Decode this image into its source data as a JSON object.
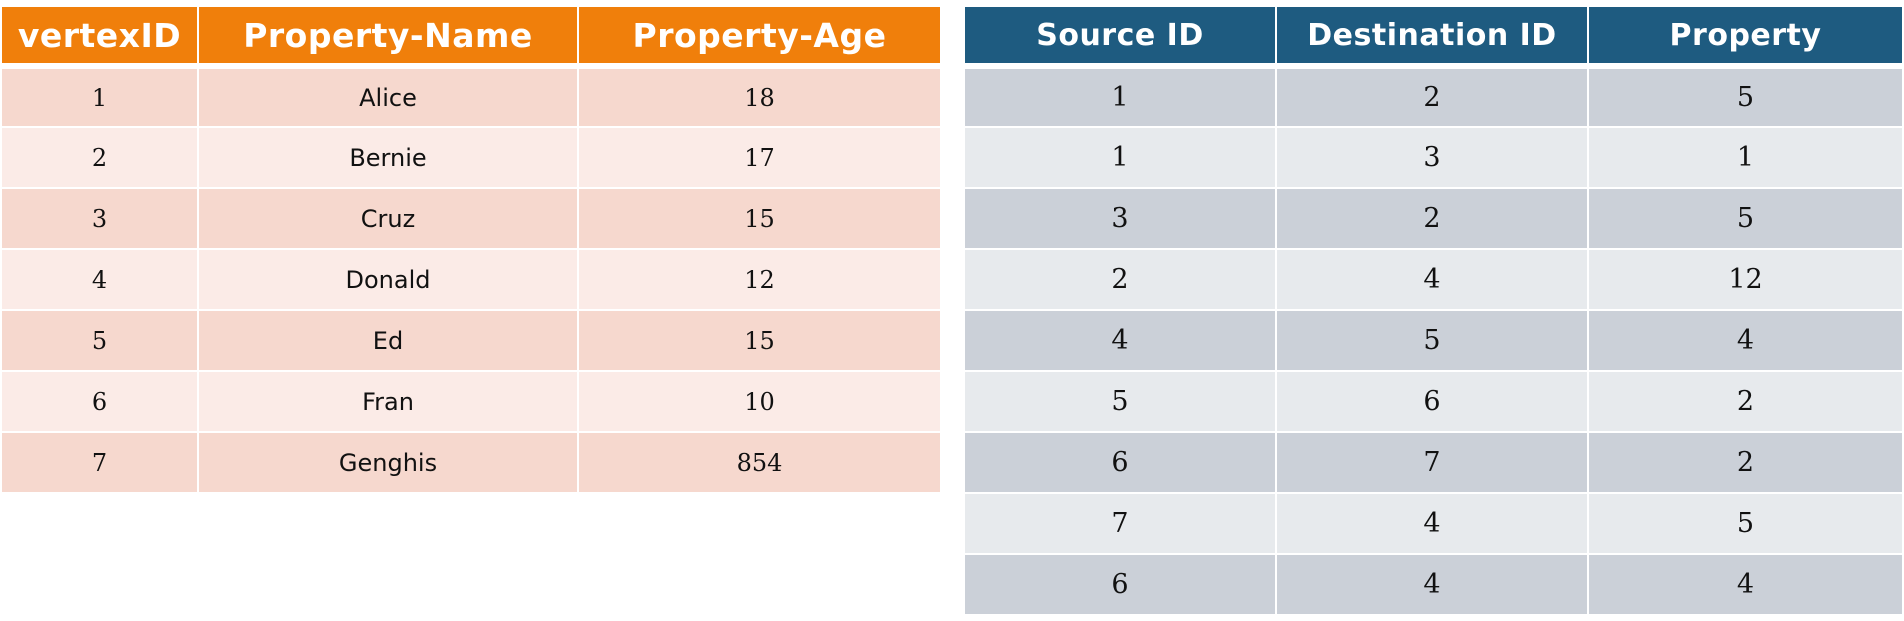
{
  "vertex_table": {
    "headers": [
      "vertexID",
      "Property-Name",
      "Property-Age"
    ],
    "rows": [
      [
        "1",
        "Alice",
        "18"
      ],
      [
        "2",
        "Bernie",
        "17"
      ],
      [
        "3",
        "Cruz",
        "15"
      ],
      [
        "4",
        "Donald",
        "12"
      ],
      [
        "5",
        "Ed",
        "15"
      ],
      [
        "6",
        "Fran",
        "10"
      ],
      [
        "7",
        "Genghis",
        "854"
      ]
    ],
    "header_color": "#f07f0b",
    "row_color_odd": "#f6d8ce",
    "row_color_even": "#fbebe7"
  },
  "edge_table": {
    "headers": [
      "Source ID",
      "Destination ID",
      "Property"
    ],
    "rows": [
      [
        "1",
        "2",
        "5"
      ],
      [
        "1",
        "3",
        "1"
      ],
      [
        "3",
        "2",
        "5"
      ],
      [
        "2",
        "4",
        "12"
      ],
      [
        "4",
        "5",
        "4"
      ],
      [
        "5",
        "6",
        "2"
      ],
      [
        "6",
        "7",
        "2"
      ],
      [
        "7",
        "4",
        "5"
      ],
      [
        "6",
        "4",
        "4"
      ]
    ],
    "header_color": "#1e5b80",
    "row_color_odd": "#cbd0d8",
    "row_color_even": "#e7eaed"
  }
}
